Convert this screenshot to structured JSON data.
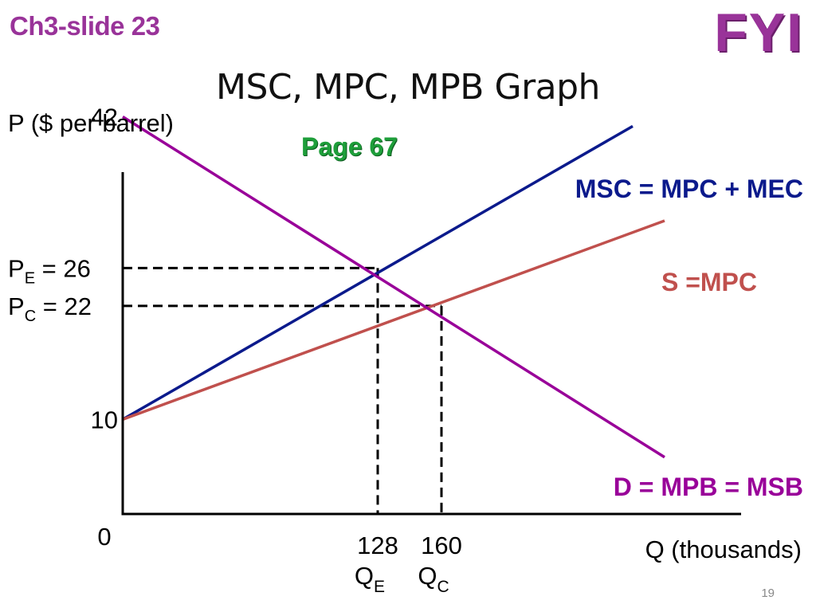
{
  "slide": {
    "label": "Ch3-slide 23",
    "badge": "FYI",
    "page_ref": "Page 67",
    "slide_number": "19"
  },
  "colors": {
    "msc": "#0b1a8c",
    "mpc": "#c0504d",
    "mpb": "#990099",
    "badge": "#993399",
    "page_ref": "#1e9e3a"
  },
  "chart_data": {
    "type": "line",
    "title": "MSC, MPC, MPB Graph",
    "ylabel": "P ($ per barrel)",
    "xlabel": "Q (thousands)",
    "origin_label": "0",
    "ylim": [
      0,
      46
    ],
    "xlim": [
      0,
      320
    ],
    "grid": false,
    "series": [
      {
        "name": "MSC = MPC + MEC",
        "key": "msc",
        "x": [
          0,
          256
        ],
        "y": [
          10,
          41
        ]
      },
      {
        "name": "S =MPC",
        "key": "mpc",
        "x": [
          0,
          272
        ],
        "y": [
          10,
          31
        ]
      },
      {
        "name": "D = MPB = MSB",
        "key": "mpb",
        "x": [
          0,
          272
        ],
        "y": [
          42,
          6
        ]
      }
    ],
    "y_ticks": [
      {
        "value": 42,
        "text": "42"
      },
      {
        "value": 10,
        "text": "10"
      }
    ],
    "equilibria": [
      {
        "key": "e",
        "p": 26,
        "q": 128,
        "p_main": "P",
        "p_sub": "E",
        "p_rest": " = 26",
        "q_value": "128",
        "q_main": "Q",
        "q_sub": "E"
      },
      {
        "key": "c",
        "p": 22,
        "q": 160,
        "p_main": "P",
        "p_sub": "C",
        "p_rest": " = 22",
        "q_value": "160",
        "q_main": "Q",
        "q_sub": "C"
      }
    ]
  }
}
